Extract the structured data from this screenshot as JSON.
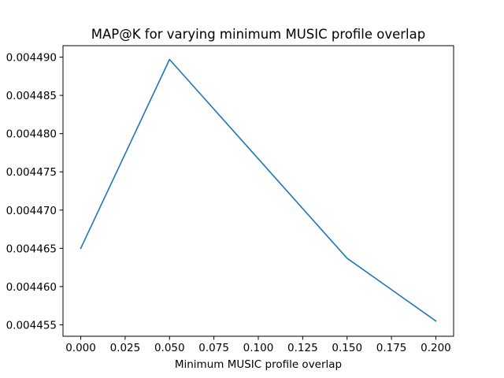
{
  "chart_data": {
    "type": "line",
    "title": "MAP@K for varying minimum MUSIC profile overlap",
    "xlabel": "Minimum MUSIC profile overlap",
    "ylabel": "",
    "xlim": [
      -0.01,
      0.21
    ],
    "ylim": [
      0.0044535,
      0.0044915
    ],
    "x_ticks": [
      0.0,
      0.025,
      0.05,
      0.075,
      0.1,
      0.125,
      0.15,
      0.175,
      0.2
    ],
    "x_tick_labels": [
      "0.000",
      "0.025",
      "0.050",
      "0.075",
      "0.100",
      "0.125",
      "0.150",
      "0.175",
      "0.200"
    ],
    "y_ticks": [
      0.004455,
      0.00446,
      0.004465,
      0.00447,
      0.004475,
      0.00448,
      0.004485,
      0.00449
    ],
    "y_tick_labels": [
      "0.004455",
      "0.004460",
      "0.004465",
      "0.004470",
      "0.004475",
      "0.004480",
      "0.004485",
      "0.004490"
    ],
    "grid": false,
    "series": [
      {
        "color": "#1f77b4",
        "x": [
          0.0,
          0.05,
          0.1,
          0.15,
          0.2
        ],
        "y": [
          0.004465,
          0.0044897,
          0.0044767,
          0.0044637,
          0.0044555
        ]
      }
    ]
  }
}
